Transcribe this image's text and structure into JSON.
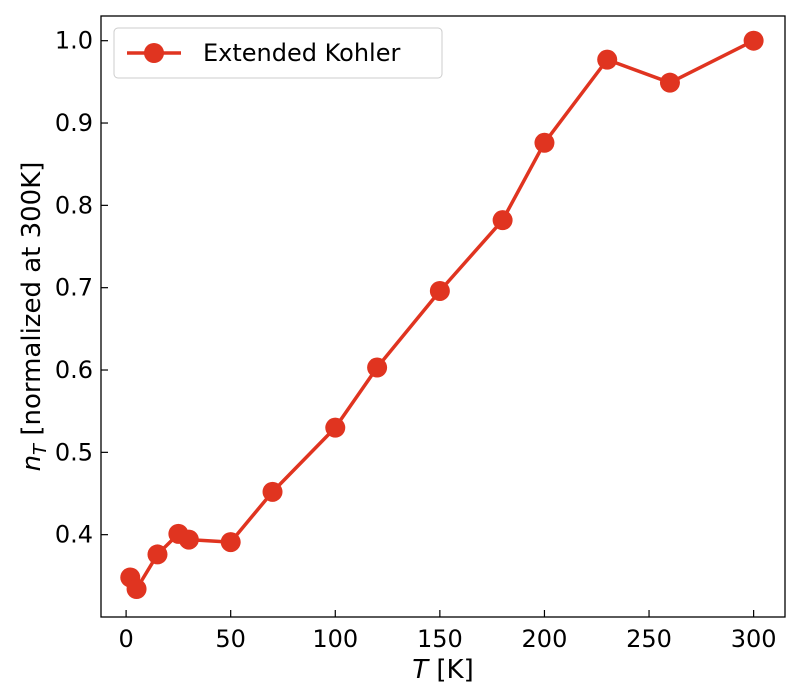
{
  "chart_data": {
    "type": "line",
    "title": "",
    "xlabel_italic": "T",
    "xlabel_rest": " [K]",
    "ylabel_base": "n",
    "ylabel_sub": "T",
    "ylabel_rest": " [normalized at 300K]",
    "xlim": [
      -12,
      315
    ],
    "ylim": [
      0.3,
      1.03
    ],
    "xticks": [
      "0",
      "50",
      "100",
      "150",
      "200",
      "250",
      "300"
    ],
    "yticks": [
      "0.4",
      "0.5",
      "0.6",
      "0.7",
      "0.8",
      "0.9",
      "1.0"
    ],
    "grid": false,
    "legend_position": "top-left",
    "series": [
      {
        "name": "Extended Kohler",
        "color": "#e03420",
        "marker": "circle",
        "x": [
          2,
          5,
          15,
          25,
          30,
          50,
          70,
          100,
          120,
          150,
          180,
          200,
          230,
          260,
          300
        ],
        "y": [
          0.348,
          0.334,
          0.376,
          0.401,
          0.394,
          0.391,
          0.452,
          0.53,
          0.603,
          0.696,
          0.782,
          0.876,
          0.977,
          0.949,
          1.0
        ]
      }
    ]
  }
}
